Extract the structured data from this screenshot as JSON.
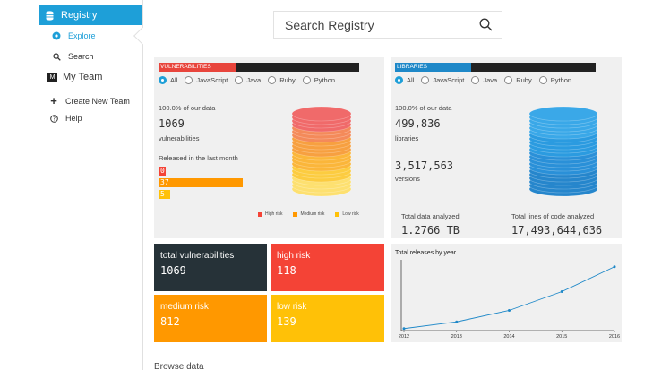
{
  "sidebar": {
    "registry": "Registry",
    "explore": "Explore",
    "search": "Search",
    "my_team_badge": "M",
    "my_team": "My Team",
    "create_team": "Create New Team",
    "help": "Help"
  },
  "search": {
    "placeholder": "Search Registry"
  },
  "vulnerabilities": {
    "header": "VULNERABILITIES",
    "header_color": "#e8453c",
    "filters": [
      "All",
      "JavaScript",
      "Java",
      "Ruby",
      "Python"
    ],
    "selected_filter": "All",
    "pct_text": "100.0% of our data",
    "count": "1069",
    "count_label": "vulnerabilities",
    "released_title": "Released in the last month",
    "released": [
      {
        "value": "0",
        "color": "#f44336"
      },
      {
        "value": "37",
        "color": "#ff9800"
      },
      {
        "value": "5",
        "color": "#ffc107"
      }
    ],
    "legend": [
      "High risk",
      "Medium risk",
      "Low risk"
    ]
  },
  "libraries": {
    "header": "LIBRARIES",
    "header_color": "#1e88c8",
    "filters": [
      "All",
      "JavaScript",
      "Java",
      "Ruby",
      "Python"
    ],
    "selected_filter": "All",
    "pct_text": "100.0% of our data",
    "libraries_count": "499,836",
    "libraries_label": "libraries",
    "versions_count": "3,517,563",
    "versions_label": "versions",
    "total_data_label": "Total data analyzed",
    "total_data_value": "1.2766 TB",
    "total_lines_label": "Total lines of code analyzed",
    "total_lines_value": "17,493,644,636"
  },
  "tiles": {
    "total": {
      "title": "total vulnerabilities",
      "value": "1069",
      "color": "#263238"
    },
    "high": {
      "title": "high risk",
      "value": "118",
      "color": "#f44336"
    },
    "medium": {
      "title": "medium risk",
      "value": "812",
      "color": "#ff9800"
    },
    "low": {
      "title": "low risk",
      "value": "139",
      "color": "#ffc107"
    }
  },
  "chart_data": {
    "type": "line",
    "title": "Total releases by year",
    "x": [
      "2012",
      "2013",
      "2014",
      "2015",
      "2016"
    ],
    "values": [
      0.03,
      0.13,
      0.3,
      0.58,
      0.95
    ],
    "ylim": [
      0,
      1
    ],
    "color": "#1e88c8"
  },
  "browse": "Browse data"
}
